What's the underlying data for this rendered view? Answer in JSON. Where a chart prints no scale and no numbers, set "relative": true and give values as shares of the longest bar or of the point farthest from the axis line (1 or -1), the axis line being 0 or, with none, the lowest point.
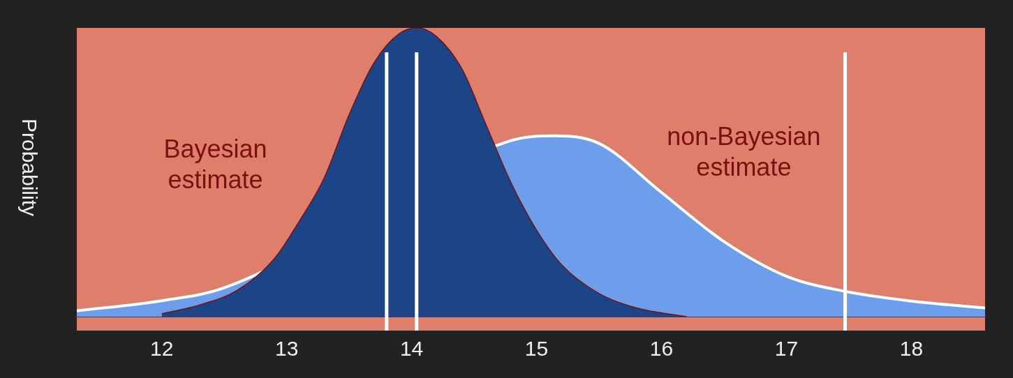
{
  "chart_data": {
    "type": "area",
    "ylabel": "Probability",
    "relative": true,
    "legend": false,
    "grid": false,
    "xlim": [
      11.32,
      18.59
    ],
    "xticks": [
      12,
      13,
      14,
      15,
      16,
      17,
      18
    ],
    "series": [
      {
        "name": "non-Bayesian estimate",
        "color": "#6d9eeb",
        "x": [
          11.32,
          12,
          12.5,
          13,
          13.5,
          14,
          14.5,
          14.8,
          15.15,
          15.5,
          16,
          16.5,
          17,
          17.5,
          18,
          18.59
        ],
        "values": [
          0.02,
          0.055,
          0.1,
          null,
          null,
          null,
          null,
          0.61,
          0.626,
          0.6,
          0.43,
          0.26,
          0.14,
          0.085,
          0.054,
          0.03
        ]
      },
      {
        "name": "Bayesian estimate",
        "color": "#1c4587",
        "x": [
          12.0,
          12.3,
          12.6,
          12.9,
          13.1,
          13.3,
          13.5,
          13.7,
          13.9,
          14.05,
          14.2,
          14.4,
          14.6,
          14.8,
          15.0,
          15.2,
          15.5,
          15.8,
          16.2
        ],
        "values": [
          0.01,
          0.04,
          0.09,
          0.2,
          0.33,
          0.48,
          0.7,
          0.88,
          0.98,
          1.0,
          0.97,
          0.86,
          0.66,
          0.46,
          0.3,
          0.18,
          0.08,
          0.03,
          0.0
        ]
      }
    ],
    "ref_lines": [
      {
        "axis": "x",
        "value": 13.8,
        "color": "#ffffff"
      },
      {
        "axis": "x",
        "value": 14.04,
        "color": "#ffffff"
      },
      {
        "axis": "x",
        "value": 17.47,
        "color": "#ffffff"
      }
    ]
  }
}
